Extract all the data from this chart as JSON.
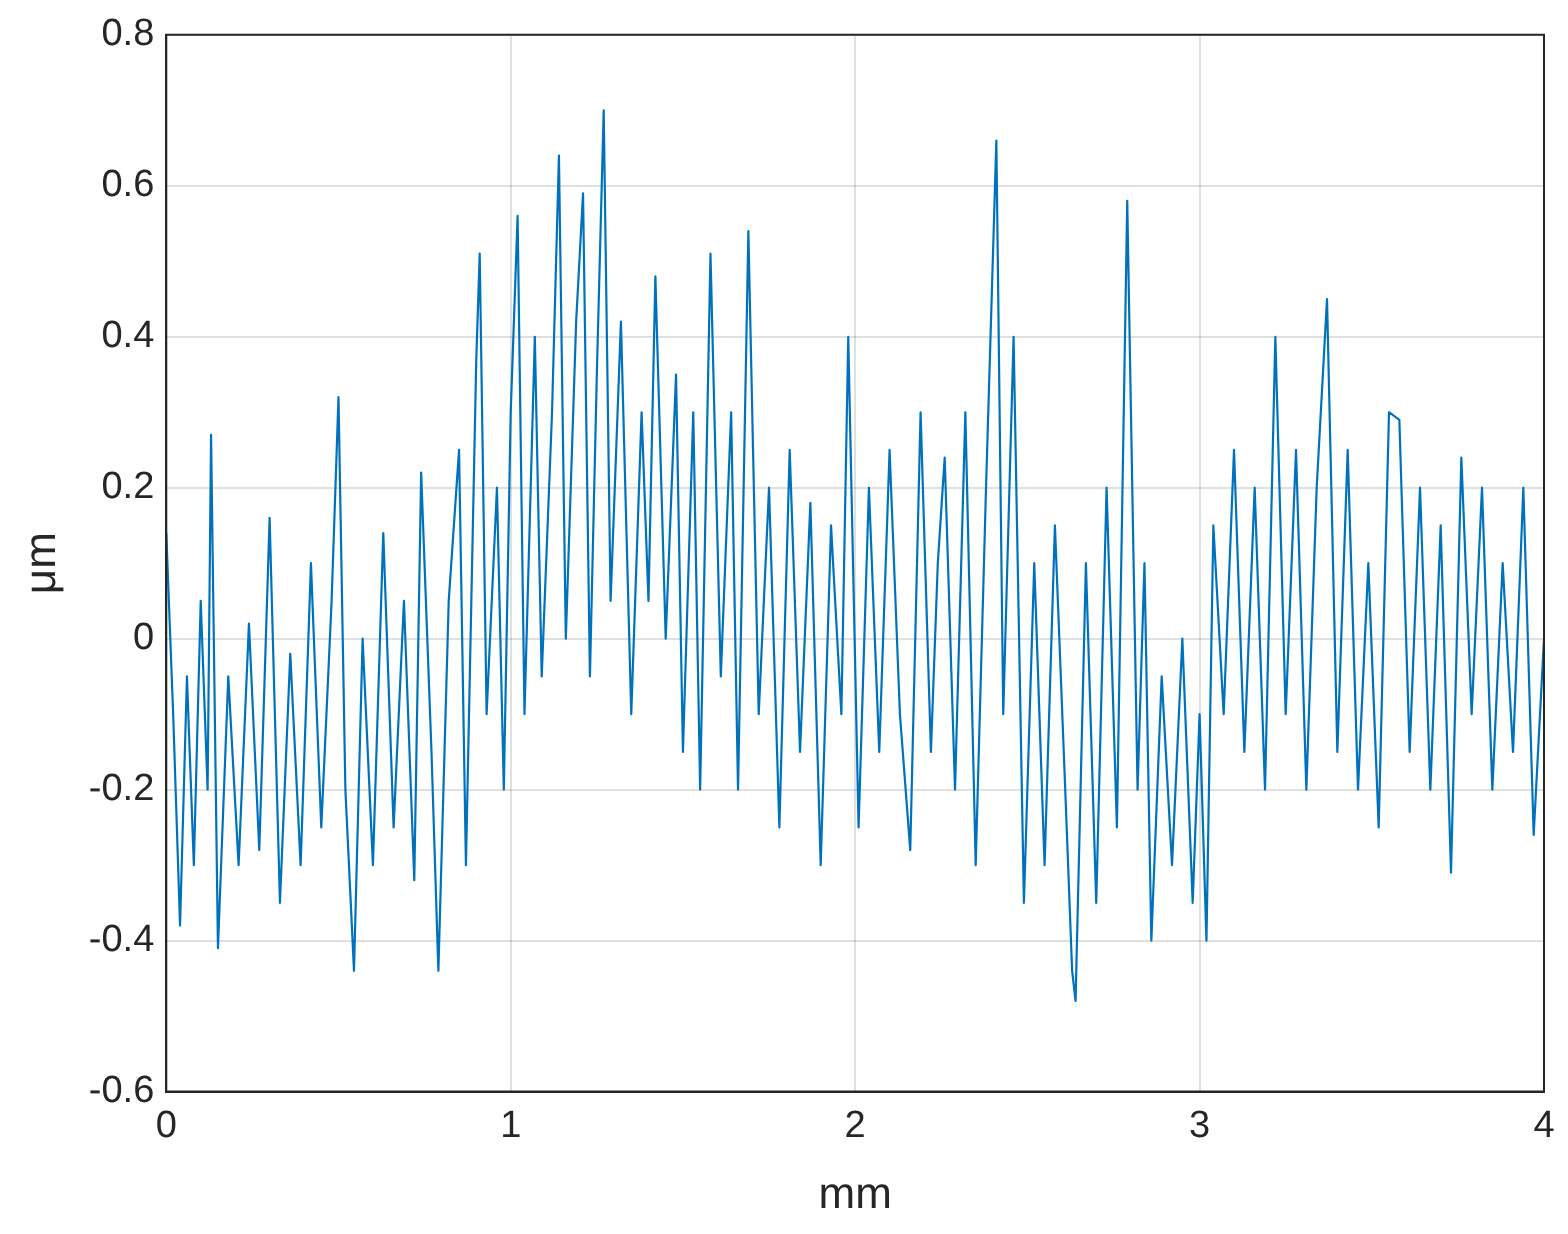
{
  "chart_data": {
    "type": "line",
    "xlabel": "mm",
    "ylabel": "μm",
    "xlim": [
      0,
      4
    ],
    "xticks": [
      0,
      1,
      2,
      3,
      4
    ],
    "ylim": [
      -0.6,
      0.8
    ],
    "yticks": [
      -0.6,
      -0.4,
      -0.2,
      0,
      0.2,
      0.4,
      0.6,
      0.8
    ],
    "grid": true,
    "legend": false,
    "marker": "none",
    "line_style": "solid",
    "series": [
      {
        "color": "#0072bd",
        "x": [
          0,
          0.02,
          0.04,
          0.06,
          0.08,
          0.1,
          0.12,
          0.13,
          0.15,
          0.18,
          0.21,
          0.24,
          0.27,
          0.3,
          0.33,
          0.36,
          0.39,
          0.42,
          0.45,
          0.48,
          0.5,
          0.52,
          0.545,
          0.57,
          0.6,
          0.63,
          0.66,
          0.69,
          0.72,
          0.74,
          0.77,
          0.79,
          0.82,
          0.85,
          0.87,
          0.9,
          0.91,
          0.93,
          0.96,
          0.98,
          1,
          1.02,
          1.04,
          1.07,
          1.09,
          1.12,
          1.14,
          1.16,
          1.19,
          1.21,
          1.23,
          1.25,
          1.27,
          1.29,
          1.32,
          1.35,
          1.38,
          1.4,
          1.42,
          1.45,
          1.48,
          1.5,
          1.53,
          1.55,
          1.58,
          1.61,
          1.64,
          1.66,
          1.69,
          1.72,
          1.75,
          1.78,
          1.81,
          1.84,
          1.87,
          1.9,
          1.93,
          1.96,
          1.98,
          2.01,
          2.04,
          2.07,
          2.1,
          2.13,
          2.16,
          2.19,
          2.22,
          2.24,
          2.26,
          2.29,
          2.32,
          2.35,
          2.38,
          2.41,
          2.43,
          2.46,
          2.49,
          2.52,
          2.55,
          2.58,
          2.61,
          2.63,
          2.64,
          2.67,
          2.7,
          2.73,
          2.76,
          2.79,
          2.82,
          2.84,
          2.86,
          2.89,
          2.92,
          2.95,
          2.98,
          3,
          3.02,
          3.04,
          3.07,
          3.1,
          3.13,
          3.16,
          3.19,
          3.22,
          3.25,
          3.28,
          3.31,
          3.34,
          3.37,
          3.4,
          3.43,
          3.46,
          3.49,
          3.52,
          3.55,
          3.58,
          3.61,
          3.64,
          3.67,
          3.7,
          3.73,
          3.76,
          3.79,
          3.82,
          3.85,
          3.88,
          3.91,
          3.94,
          3.97,
          4
        ],
        "values": [
          0.14,
          -0.1,
          -0.38,
          -0.05,
          -0.3,
          0.05,
          -0.2,
          0.27,
          -0.41,
          -0.05,
          -0.3,
          0.02,
          -0.28,
          0.16,
          -0.35,
          -0.02,
          -0.3,
          0.1,
          -0.25,
          0.05,
          0.32,
          -0.2,
          -0.44,
          0,
          -0.3,
          0.14,
          -0.25,
          0.05,
          -0.32,
          0.22,
          -0.15,
          -0.44,
          0.05,
          0.25,
          -0.3,
          0.37,
          0.51,
          -0.1,
          0.2,
          -0.2,
          0.3,
          0.56,
          -0.1,
          0.4,
          -0.05,
          0.3,
          0.64,
          0,
          0.42,
          0.59,
          -0.05,
          0.35,
          0.7,
          0.05,
          0.42,
          -0.1,
          0.3,
          0.05,
          0.48,
          0,
          0.35,
          -0.15,
          0.3,
          -0.2,
          0.51,
          -0.05,
          0.3,
          -0.2,
          0.54,
          -0.1,
          0.2,
          -0.25,
          0.25,
          -0.15,
          0.18,
          -0.3,
          0.15,
          -0.1,
          0.4,
          -0.25,
          0.2,
          -0.15,
          0.25,
          -0.1,
          -0.28,
          0.3,
          -0.15,
          0.1,
          0.24,
          -0.2,
          0.3,
          -0.3,
          0.2,
          0.66,
          -0.1,
          0.4,
          -0.35,
          0.1,
          -0.3,
          0.15,
          -0.2,
          -0.44,
          -0.48,
          0.1,
          -0.35,
          0.2,
          -0.25,
          0.58,
          -0.2,
          0.1,
          -0.4,
          -0.05,
          -0.3,
          0,
          -0.35,
          -0.1,
          -0.4,
          0.15,
          -0.1,
          0.25,
          -0.15,
          0.2,
          -0.2,
          0.4,
          -0.1,
          0.25,
          -0.2,
          0.2,
          0.45,
          -0.15,
          0.25,
          -0.2,
          0.1,
          -0.25,
          0.3,
          0.29,
          -0.15,
          0.2,
          -0.2,
          0.15,
          -0.31,
          0.24,
          -0.1,
          0.2,
          -0.2,
          0.1,
          -0.15,
          0.2,
          -0.26,
          0
        ]
      }
    ]
  }
}
